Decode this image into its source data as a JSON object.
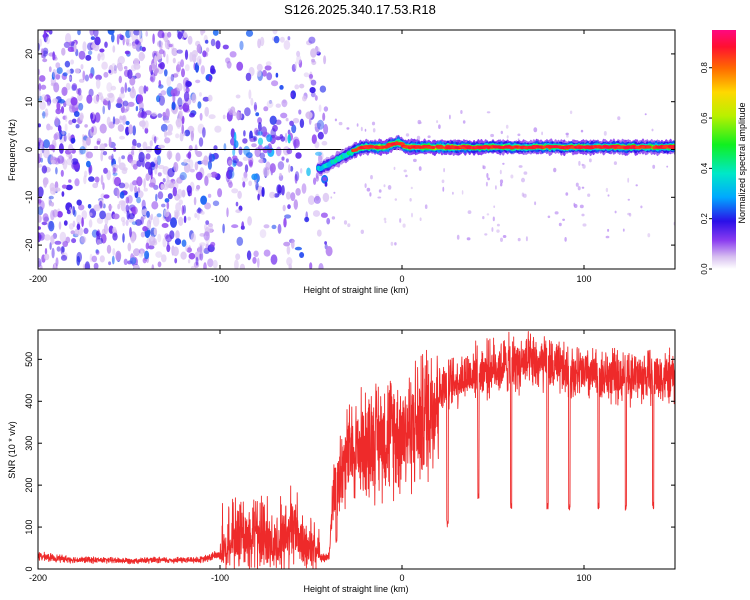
{
  "title": "S126.2025.340.17.53.R18",
  "colors": {
    "snr_line": "#ee2a2a",
    "axis": "#000000",
    "spec_low": "#a060e0",
    "spec_mid": "#00ee44",
    "spec_high": "#ff1133"
  },
  "chart_data": [
    {
      "type": "heatmap",
      "name": "spectrogram",
      "xlabel": "Height of straight line (km)",
      "ylabel": "Frequency (Hz)",
      "xlim": [
        -200,
        150
      ],
      "ylim": [
        -25,
        25
      ],
      "xticks": [
        -200,
        -100,
        0,
        100
      ],
      "xtick_labels": [
        "-200",
        "-100",
        "0",
        "100"
      ],
      "yticks": [
        20,
        10,
        0,
        -10,
        -20
      ],
      "ytick_labels": [
        "20",
        "10",
        "0",
        "-10",
        "-20"
      ],
      "colorbar": {
        "label": "Normalized spectral amplitude",
        "range": [
          0.0,
          0.95
        ],
        "ticks": [
          0.0,
          0.2,
          0.4,
          0.6,
          0.8
        ],
        "tick_labels": [
          "0.0",
          "0.2",
          "0.4",
          "0.6",
          "0.8"
        ]
      },
      "reference_line_hz": 0,
      "ridge": {
        "description_points_x": [
          -45,
          -40,
          -35,
          -30,
          -25,
          -20,
          -10,
          -2,
          2,
          10,
          30,
          60,
          100,
          150
        ],
        "description_points_y": [
          -4,
          -3,
          -2,
          -1,
          0,
          0.5,
          0.5,
          1.5,
          0.5,
          0.5,
          0.5,
          0.5,
          0.5,
          0.5
        ],
        "amplitude": [
          0.5,
          0.55,
          0.6,
          0.65,
          0.75,
          0.85,
          0.9,
          0.8,
          0.9,
          0.9,
          0.85,
          0.8,
          0.8,
          0.75
        ]
      }
    },
    {
      "type": "line",
      "name": "snr",
      "xlabel": "Height of straight line (km)",
      "ylabel": "SNR (10 * v/v)",
      "xlim": [
        -200,
        150
      ],
      "ylim": [
        0,
        570
      ],
      "xticks": [
        -200,
        -100,
        0,
        100
      ],
      "xtick_labels": [
        "-200",
        "-100",
        "0",
        "100"
      ],
      "yticks": [
        0,
        100,
        200,
        300,
        400,
        500
      ],
      "ytick_labels": [
        "0",
        "100",
        "200",
        "300",
        "400",
        "500"
      ],
      "trend_x": [
        -200,
        -180,
        -150,
        -110,
        -100,
        -90,
        -80,
        -70,
        -60,
        -50,
        -45,
        -40,
        -38,
        -30,
        -20,
        -10,
        0,
        10,
        20,
        30,
        40,
        50,
        60,
        70,
        80,
        90,
        100,
        110,
        120,
        130,
        140,
        150
      ],
      "trend_y": [
        30,
        22,
        20,
        22,
        35,
        70,
        80,
        55,
        90,
        40,
        25,
        28,
        190,
        270,
        300,
        320,
        330,
        350,
        420,
        450,
        470,
        480,
        490,
        490,
        485,
        470,
        465,
        460,
        460,
        460,
        460,
        455
      ],
      "dips_x": [
        -36,
        25,
        42,
        60,
        80,
        92,
        108,
        123,
        138
      ],
      "dips_y": [
        60,
        100,
        160,
        140,
        140,
        140,
        140,
        140,
        140
      ]
    }
  ]
}
